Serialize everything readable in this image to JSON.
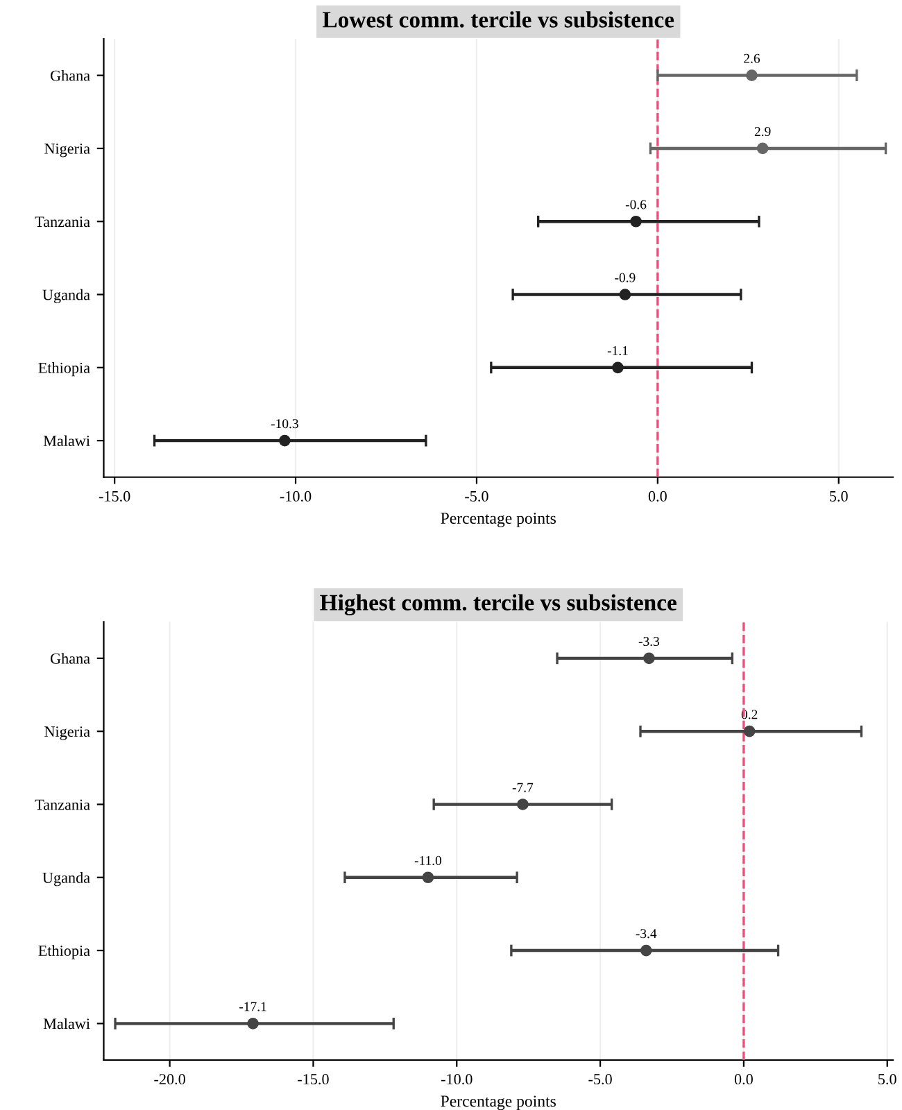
{
  "chart_data": [
    {
      "type": "scatter",
      "orientation": "horizontal",
      "title": "Lowest comm. tercile vs subsistence",
      "xlabel": "Percentage points",
      "categories": [
        "Ghana",
        "Nigeria",
        "Tanzania",
        "Uganda",
        "Ethiopia",
        "Malawi"
      ],
      "values": [
        2.6,
        2.9,
        -0.6,
        -0.9,
        -1.1,
        -10.3
      ],
      "value_labels": [
        "2.6",
        "2.9",
        "-0.6",
        "-0.9",
        "-1.1",
        "-10.3"
      ],
      "errors": [
        [
          0.0,
          5.5
        ],
        [
          -0.2,
          6.3
        ],
        [
          -3.3,
          2.8
        ],
        [
          -4.0,
          2.3
        ],
        [
          -4.6,
          2.6
        ],
        [
          -13.9,
          -6.4
        ]
      ],
      "colors": [
        "#666666",
        "#666666",
        "#222222",
        "#222222",
        "#222222",
        "#222222"
      ],
      "xlim": [
        -15.3,
        6.5
      ],
      "xticks": [
        {
          "value": -15,
          "label": "-15.0"
        },
        {
          "value": -10,
          "label": "-10.0"
        },
        {
          "value": -5,
          "label": "-5.0"
        },
        {
          "value": 0,
          "label": "0.0"
        },
        {
          "value": 5,
          "label": "5.0"
        }
      ],
      "grid": "x",
      "marker": "circle",
      "ref_lines": [
        {
          "axis": "x",
          "value": 0,
          "color": "#e8507a",
          "line_style": "dashed"
        }
      ]
    },
    {
      "type": "scatter",
      "orientation": "horizontal",
      "title": "Highest comm. tercile vs subsistence",
      "xlabel": "Percentage points",
      "categories": [
        "Ghana",
        "Nigeria",
        "Tanzania",
        "Uganda",
        "Ethiopia",
        "Malawi"
      ],
      "values": [
        -3.3,
        0.2,
        -7.7,
        -11.0,
        -3.4,
        -17.1
      ],
      "value_labels": [
        "-3.3",
        "0.2",
        "-7.7",
        "-11.0",
        "-3.4",
        "-17.1"
      ],
      "errors": [
        [
          -6.5,
          -0.4
        ],
        [
          -3.6,
          4.1
        ],
        [
          -10.8,
          -4.6
        ],
        [
          -13.9,
          -7.9
        ],
        [
          -8.1,
          1.2
        ],
        [
          -21.9,
          -12.2
        ]
      ],
      "colors": [
        "#444444",
        "#444444",
        "#444444",
        "#444444",
        "#444444",
        "#444444"
      ],
      "xlim": [
        -22.3,
        5.2
      ],
      "xticks": [
        {
          "value": -20,
          "label": "-20.0"
        },
        {
          "value": -15,
          "label": "-15.0"
        },
        {
          "value": -10,
          "label": "-10.0"
        },
        {
          "value": -5,
          "label": "-5.0"
        },
        {
          "value": 0,
          "label": "0.0"
        },
        {
          "value": 5,
          "label": "5.0"
        }
      ],
      "grid": "x",
      "marker": "circle",
      "ref_lines": [
        {
          "axis": "x",
          "value": 0,
          "color": "#e8507a",
          "line_style": "dashed"
        }
      ]
    }
  ]
}
